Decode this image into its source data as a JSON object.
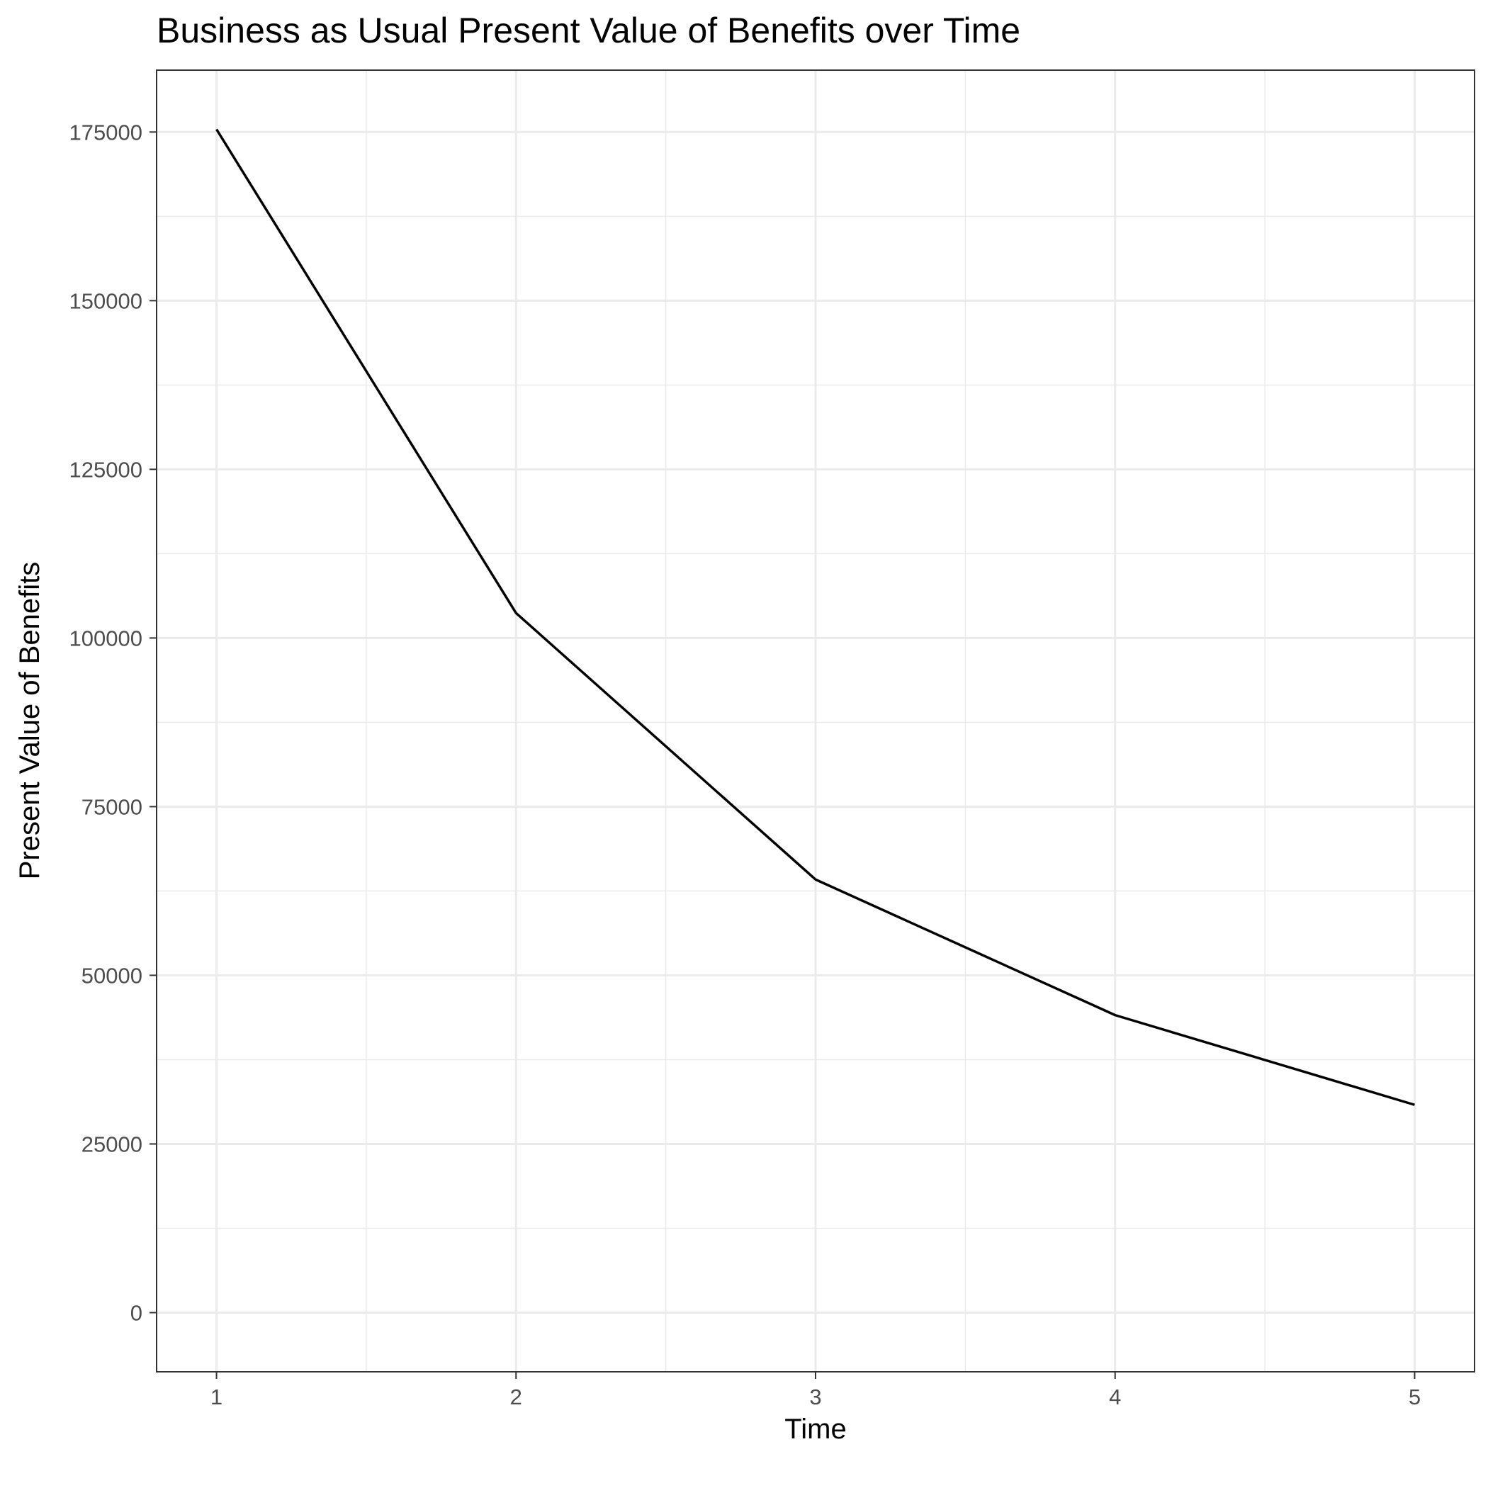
{
  "chart_data": {
    "type": "line",
    "title": "Business as Usual Present Value of Benefits over Time",
    "xlabel": "Time",
    "ylabel": "Present Value of Benefits",
    "x": [
      1,
      2,
      3,
      4,
      5
    ],
    "series": [
      {
        "values": [
          175400,
          103700,
          64200,
          44100,
          30800
        ]
      }
    ],
    "xticks": [
      1,
      2,
      3,
      4,
      5
    ],
    "yticks": [
      0,
      25000,
      50000,
      75000,
      100000,
      125000,
      150000,
      175000
    ],
    "xlim": [
      0.8,
      5.2
    ],
    "ylim": [
      -8770,
      184170
    ],
    "grid": true,
    "legend": "none",
    "colors": {
      "line": "#000000",
      "grid": "#ebebeb",
      "border": "#333333",
      "tick_text": "#4d4d4d"
    }
  }
}
